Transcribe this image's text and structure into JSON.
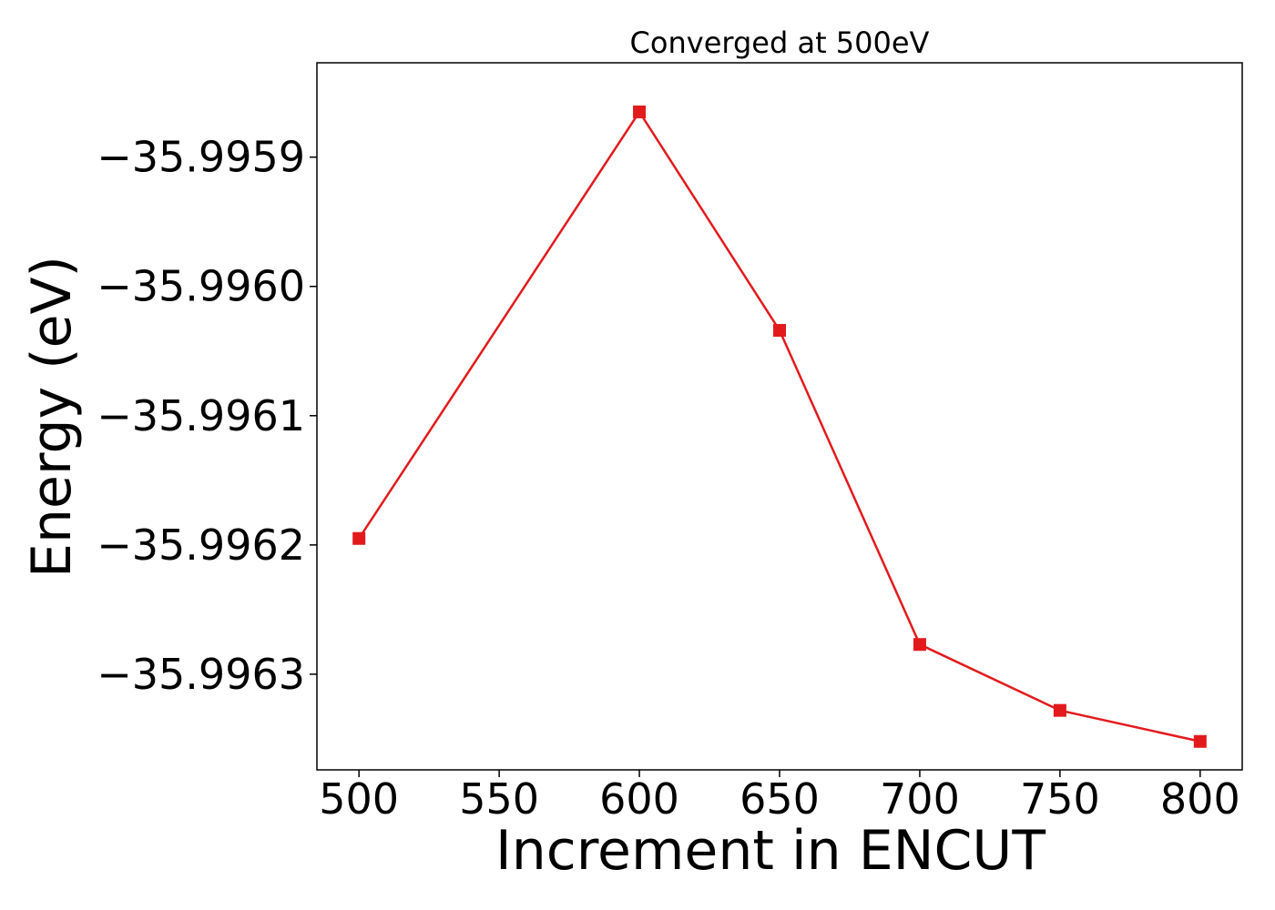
{
  "chart_data": {
    "type": "line",
    "title": "Converged at 500eV",
    "xlabel": "Increment in ENCUT",
    "ylabel": "Energy (eV)",
    "x": [
      500,
      600,
      650,
      700,
      750,
      800
    ],
    "series": [
      {
        "values": [
          -35.996195,
          -35.995865,
          -35.996034,
          -35.996277,
          -35.996328,
          -35.996352
        ],
        "color": "#e31a1c",
        "marker": "square"
      }
    ],
    "xlim": [
      485,
      815
    ],
    "ylim": [
      -35.996374,
      -35.995827
    ],
    "xticks": [
      500,
      550,
      600,
      650,
      700,
      750,
      800
    ],
    "xtick_labels": [
      "500",
      "550",
      "600",
      "650",
      "700",
      "750",
      "800"
    ],
    "yticks": [
      -35.9959,
      -35.996,
      -35.9961,
      -35.9962,
      -35.9963
    ],
    "ytick_labels": [
      "−35.9959",
      "−35.9960",
      "−35.9961",
      "−35.9962",
      "−35.9963"
    ],
    "grid": false,
    "legend": "none"
  }
}
